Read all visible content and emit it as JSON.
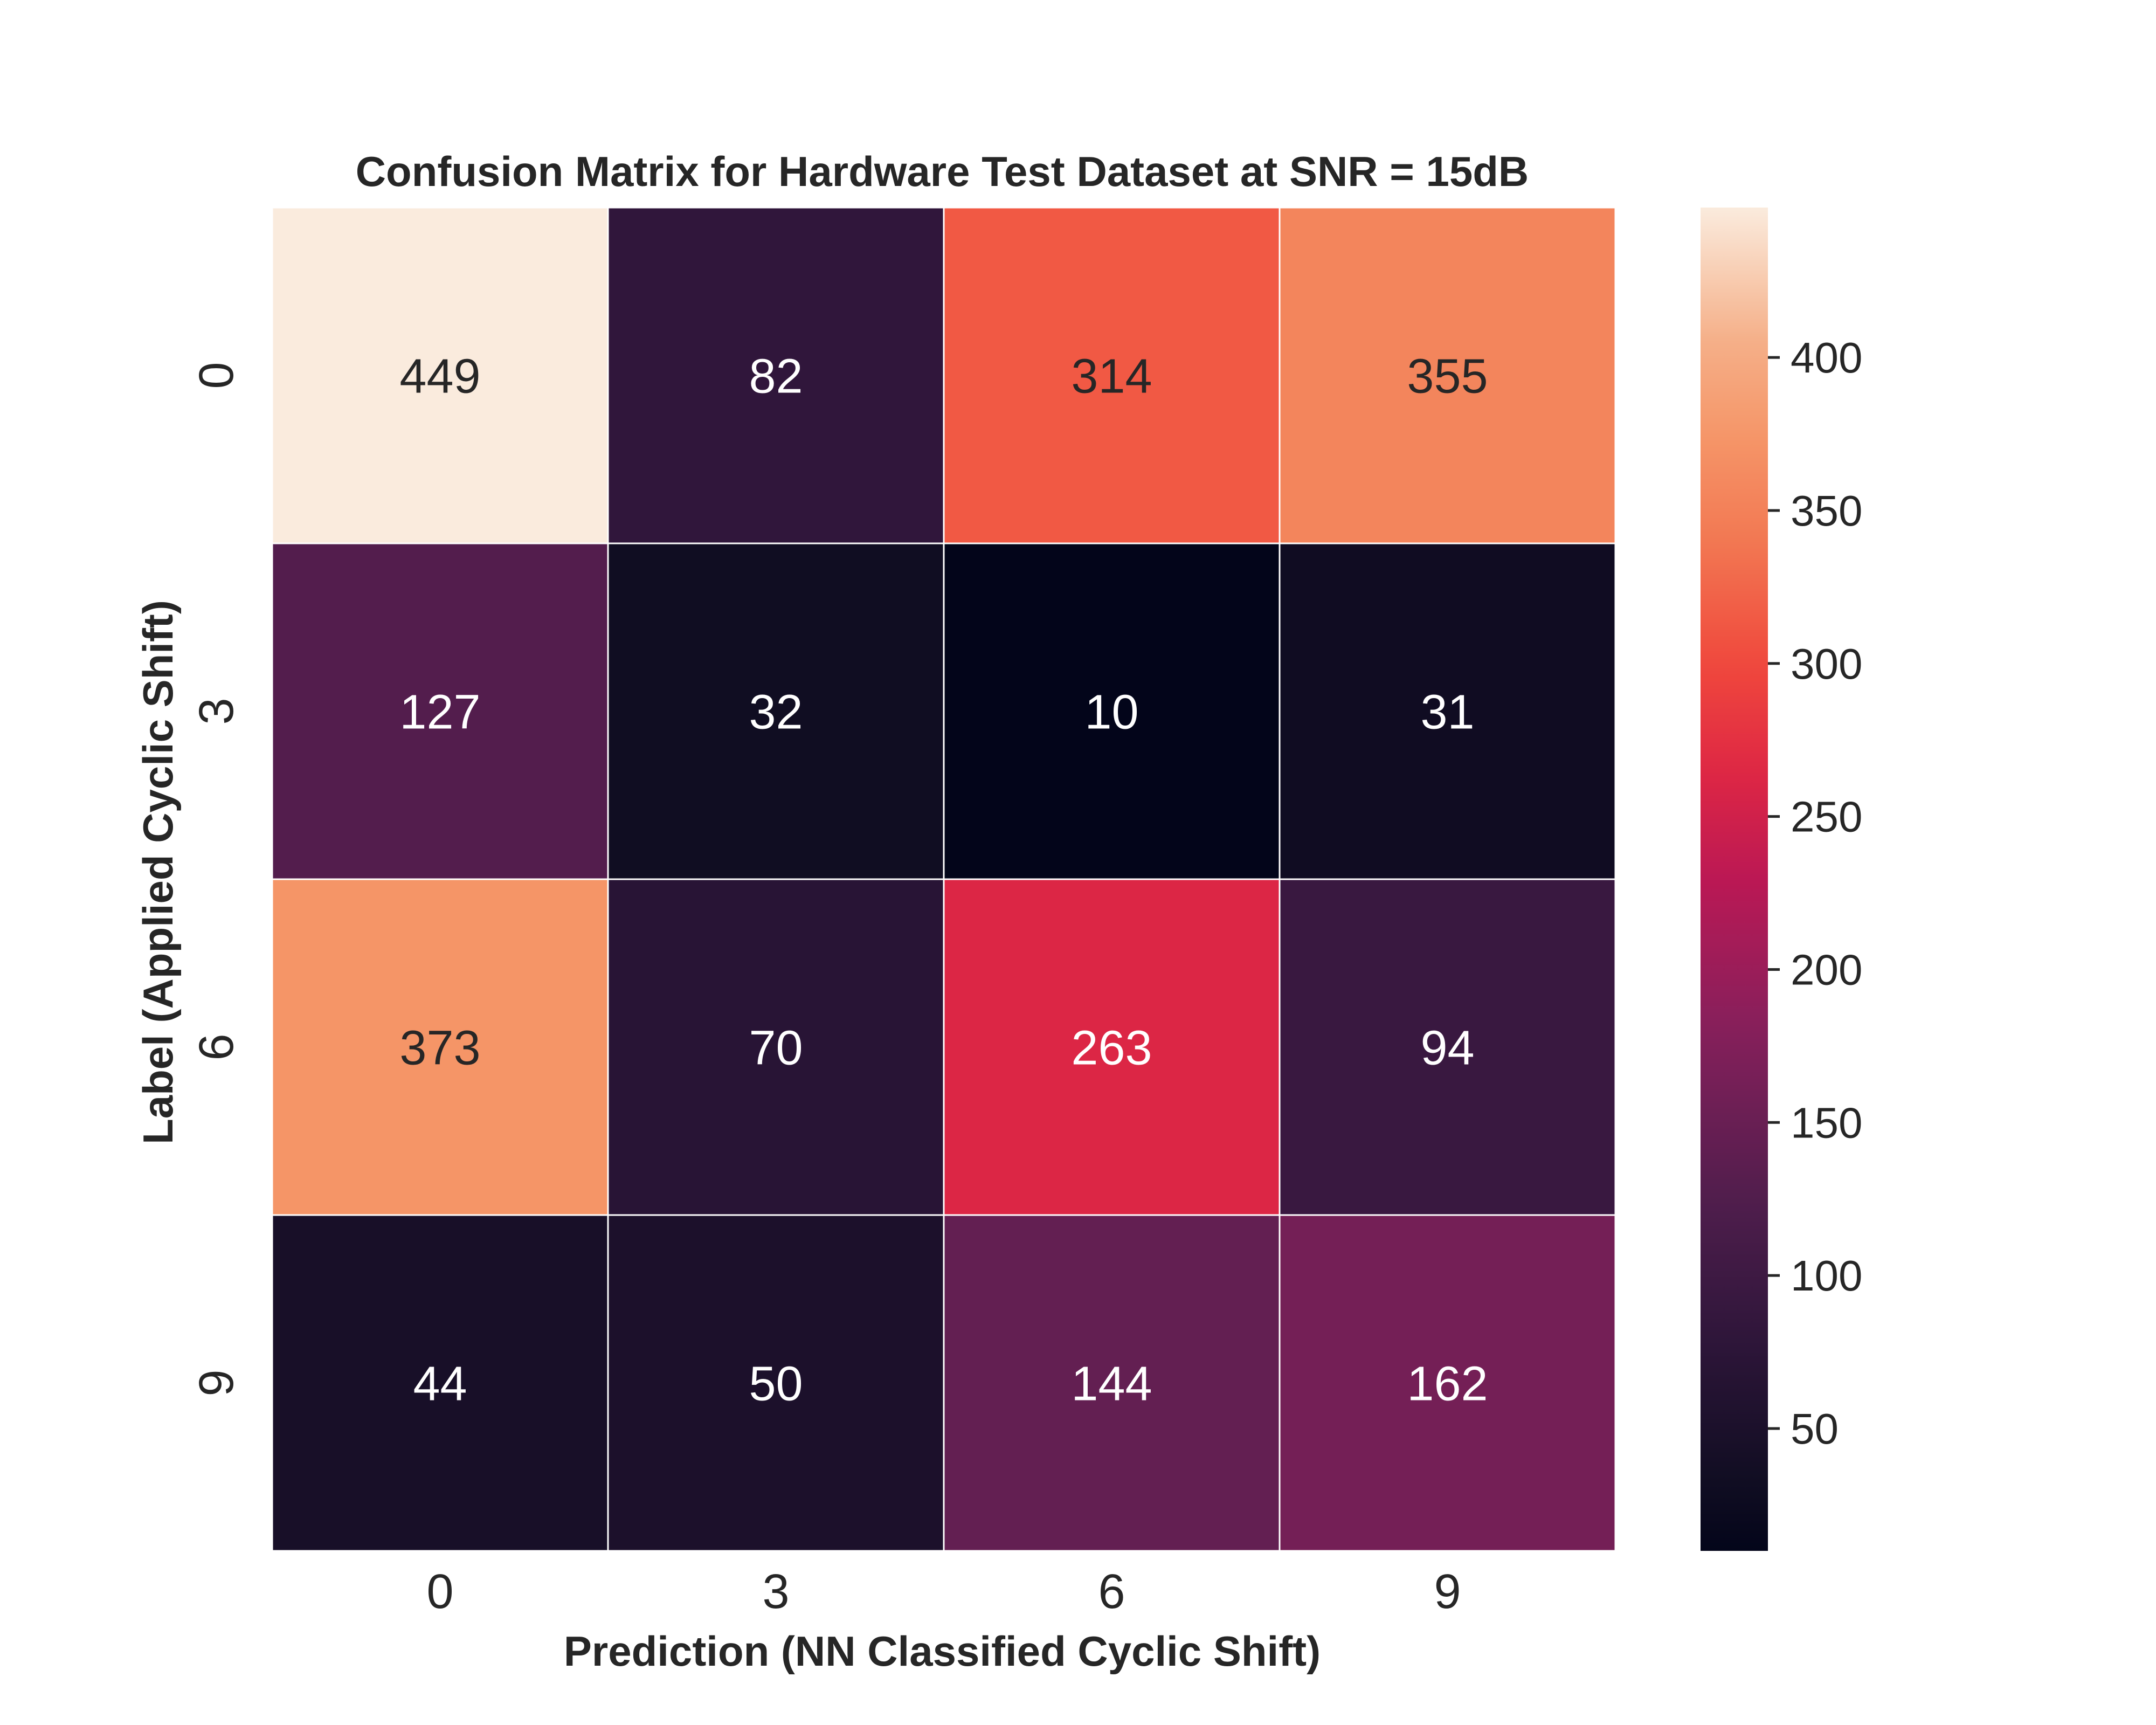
{
  "chart_data": {
    "type": "heatmap",
    "title": "Confusion Matrix for Hardware Test Dataset at SNR = 15dB",
    "xlabel": "Prediction (NN Classified Cyclic Shift)",
    "ylabel": "Label (Applied Cyclic Shift)",
    "x_categories": [
      "0",
      "3",
      "6",
      "9"
    ],
    "y_categories": [
      "0",
      "3",
      "6",
      "9"
    ],
    "values": [
      [
        449,
        82,
        314,
        355
      ],
      [
        127,
        32,
        10,
        31
      ],
      [
        373,
        70,
        263,
        94
      ],
      [
        44,
        50,
        144,
        162
      ]
    ],
    "colormap": "rocket",
    "colorbar": {
      "range": [
        10,
        449
      ],
      "ticks": [
        "50",
        "100",
        "150",
        "200",
        "250",
        "300",
        "350",
        "400"
      ]
    },
    "grid": false,
    "legend": "colorbar right"
  }
}
